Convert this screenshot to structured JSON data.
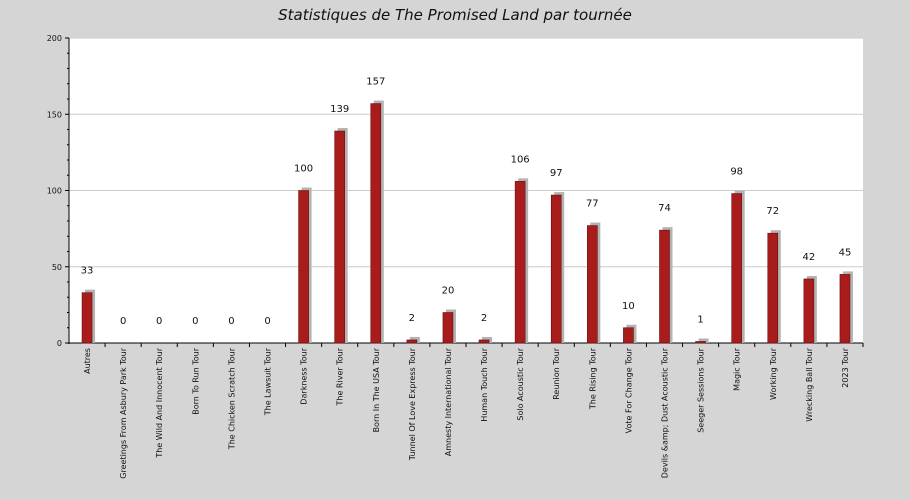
{
  "chart_data": {
    "type": "bar",
    "title": "Statistiques de The Promised Land par tournée",
    "xlabel": "",
    "ylabel": "",
    "ylim": [
      0,
      200
    ],
    "yticks": [
      0,
      50,
      100,
      150,
      200
    ],
    "grid": true,
    "legend": "none",
    "colors": {
      "bar": "#a81c1c",
      "shadow": "#b3b3b3",
      "plot_bg": "#ffffff",
      "page_bg": "#d5d5d5",
      "grid": "#cccccc"
    },
    "categories": [
      "Autres",
      "Greetings From Asbury Park Tour",
      "The Wild And Innocent Tour",
      "Born To Run Tour",
      "The Chicken Scratch Tour",
      "The Lawsuit Tour",
      "Darkness Tour",
      "The River Tour",
      "Born In The USA Tour",
      "Tunnel Of Love Express Tour",
      "Amnesty International Tour",
      "Human Touch Tour",
      "Solo Acoustic Tour",
      "Reunion Tour",
      "The Rising Tour",
      "Vote For Change Tour",
      "Devils &amp; Dust Acoustic Tour",
      "Seeger Sessions Tour",
      "Magic Tour",
      "Working Tour",
      "Wrecking Ball Tour",
      "2023 Tour"
    ],
    "values": [
      33,
      0,
      0,
      0,
      0,
      0,
      100,
      139,
      157,
      2,
      20,
      2,
      106,
      97,
      77,
      10,
      74,
      1,
      98,
      72,
      42,
      45
    ]
  }
}
